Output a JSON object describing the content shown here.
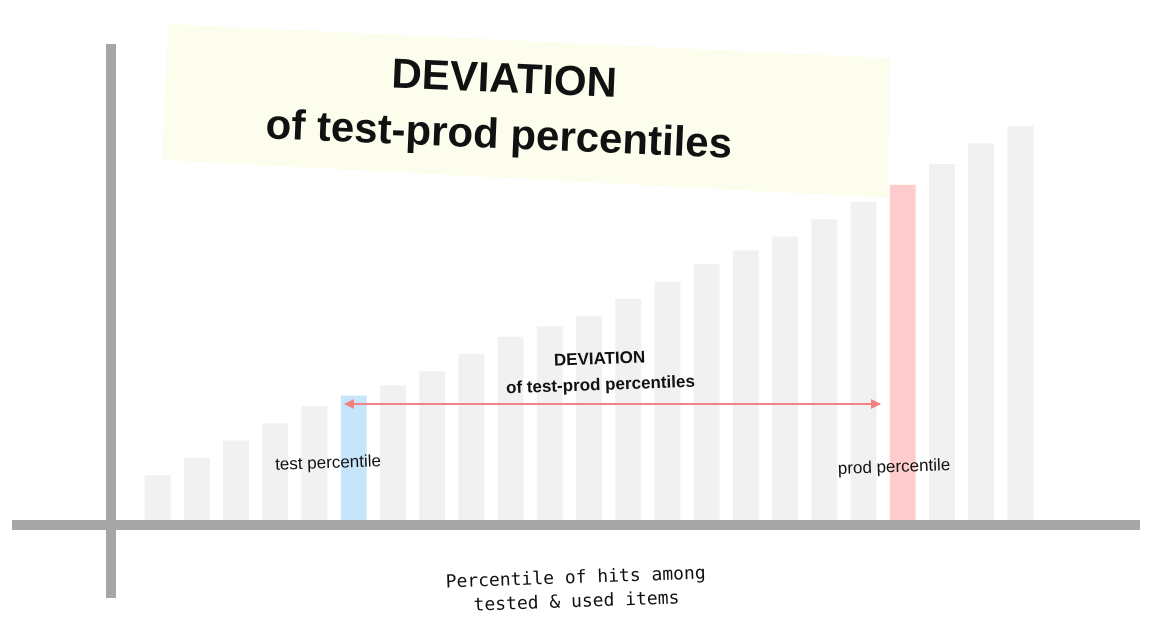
{
  "title": {
    "line1": "DEVIATION",
    "line2": "of test-prod percentiles"
  },
  "arrow_label": {
    "line1": "DEVIATION",
    "line2": "of test-prod percentiles"
  },
  "labels": {
    "test": "test percentile",
    "prod": "prod percentile"
  },
  "x_axis_label": {
    "line1": "Percentile of hits among",
    "line2": "tested & used items"
  },
  "colors": {
    "axis": "#a6a6a6",
    "bar": "#f1f1f1",
    "test_bar": "#c6e5fb",
    "prod_bar": "#ffcccd",
    "arrow": "#f48282",
    "title_highlight": "#fdfdee",
    "text": "#111111"
  },
  "chart_data": {
    "type": "bar",
    "bar_heights_relative": [
      0.13,
      0.18,
      0.23,
      0.28,
      0.33,
      0.36,
      0.39,
      0.43,
      0.48,
      0.53,
      0.56,
      0.59,
      0.64,
      0.69,
      0.74,
      0.78,
      0.82,
      0.87,
      0.92,
      0.97,
      1.03,
      1.09,
      1.14
    ],
    "highlight": {
      "test_index": 5,
      "prod_index": 19
    },
    "grid": false
  }
}
